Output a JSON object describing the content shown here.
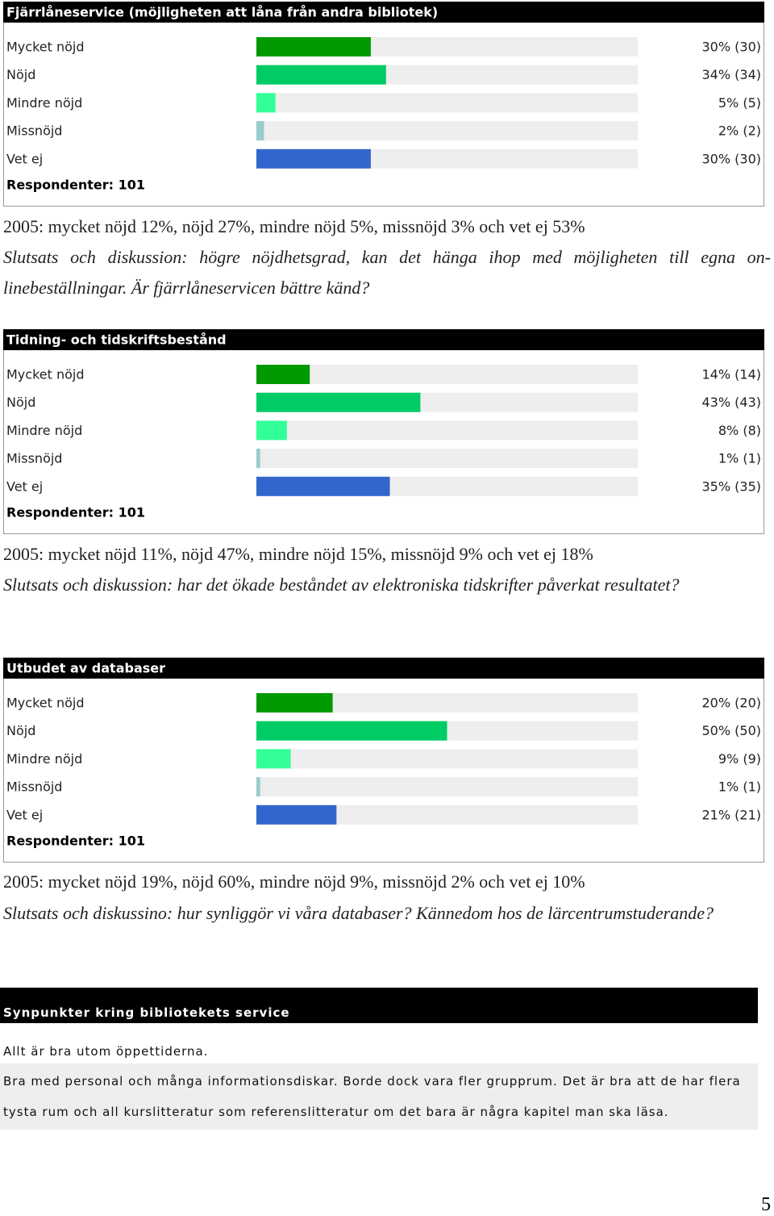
{
  "chart_data": [
    {
      "type": "bar",
      "title": "Fjärrlåneservice (möjligheten att låna från andra bibliotek)",
      "categories": [
        "Mycket nöjd",
        "Nöjd",
        "Mindre nöjd",
        "Missnöjd",
        "Vet ej"
      ],
      "values": [
        30,
        34,
        5,
        2,
        30
      ],
      "value_labels": [
        "30% (30)",
        "34% (34)",
        "5% (5)",
        "2% (2)",
        "30% (30)"
      ],
      "colors": [
        "#009900",
        "#00cc66",
        "#33ff99",
        "#99cccc",
        "#3366cc"
      ],
      "xlim": [
        0,
        100
      ],
      "footer": "Respondenter: 101"
    },
    {
      "type": "bar",
      "title": "Tidning- och tidskriftsbestånd",
      "categories": [
        "Mycket nöjd",
        "Nöjd",
        "Mindre nöjd",
        "Missnöjd",
        "Vet ej"
      ],
      "values": [
        14,
        43,
        8,
        1,
        35
      ],
      "value_labels": [
        "14% (14)",
        "43% (43)",
        "8% (8)",
        "1% (1)",
        "35% (35)"
      ],
      "colors": [
        "#009900",
        "#00cc66",
        "#33ff99",
        "#99cccc",
        "#3366cc"
      ],
      "xlim": [
        0,
        100
      ],
      "footer": "Respondenter: 101"
    },
    {
      "type": "bar",
      "title": "Utbudet av databaser",
      "categories": [
        "Mycket nöjd",
        "Nöjd",
        "Mindre nöjd",
        "Missnöjd",
        "Vet ej"
      ],
      "values": [
        20,
        50,
        9,
        1,
        21
      ],
      "value_labels": [
        "20% (20)",
        "50% (50)",
        "9% (9)",
        "1% (1)",
        "21% (21)"
      ],
      "colors": [
        "#009900",
        "#00cc66",
        "#33ff99",
        "#99cccc",
        "#3366cc"
      ],
      "xlim": [
        0,
        100
      ],
      "footer": "Respondenter: 101"
    }
  ],
  "notes": [
    {
      "stats": "2005: mycket nöjd 12%, nöjd 27%, mindre nöjd 5%, missnöjd 3% och vet ej 53%",
      "conclusion": "Slutsats och diskussion: högre nöjdhetsgrad, kan det hänga ihop med möjligheten till egna on-linebeställningar. Är fjärrlåneservicen bättre känd?"
    },
    {
      "stats": "2005: mycket nöjd 11%, nöjd 47%, mindre nöjd 15%, missnöjd 9% och vet ej 18%",
      "conclusion": "Slutsats och diskussion: har det ökade beståndet av elektroniska tidskrifter påverkat resultatet?"
    },
    {
      "stats": "2005: mycket nöjd 19%, nöjd 60%, mindre nöjd 9%, missnöjd 2% och vet ej 10%",
      "conclusion": "Slutsats och diskussino: hur synliggör vi våra databaser? Kännedom hos de lärcentrumstuderande?"
    }
  ],
  "comments": {
    "title": "Synpunkter kring bibliotekets service",
    "rows": [
      "Allt är bra utom öppettiderna.",
      "Bra med personal och många informationsdiskar. Borde dock vara fler grupprum. Det är bra att de har flera tysta rum och all kurslitteratur som referenslitteratur om det bara är några kapitel man ska läsa."
    ]
  },
  "page_number": "5"
}
